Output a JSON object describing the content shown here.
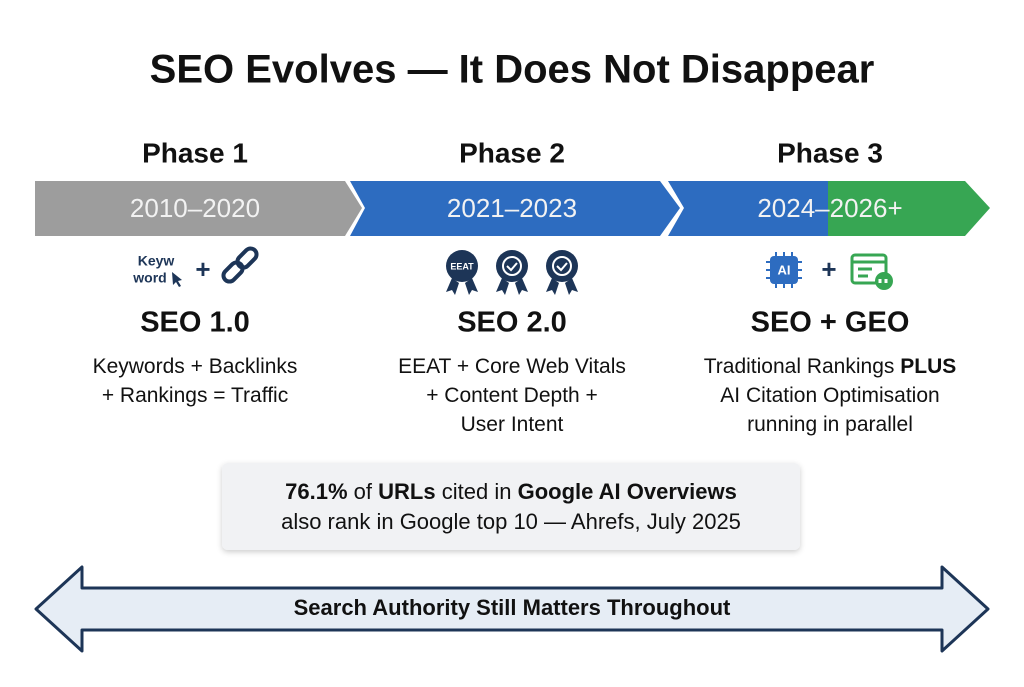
{
  "title": "SEO Evolves — It Does Not Disappear",
  "phases": [
    {
      "label": "Phase 1",
      "years": "2010–2020",
      "icon_text": [
        "Keyw",
        "word"
      ],
      "icon_plus": "+",
      "name": "SEO 1.0",
      "description": [
        [
          {
            "text": "Keywords + Backlinks"
          }
        ],
        [
          {
            "text": "+ Rankings = Traffic"
          }
        ]
      ]
    },
    {
      "label": "Phase 2",
      "years": "2021–2023",
      "icon_text": [
        "EEAT"
      ],
      "name": "SEO 2.0",
      "description": [
        [
          {
            "text": "EEAT + Core Web Vitals"
          }
        ],
        [
          {
            "text": "+ Content Depth +"
          }
        ],
        [
          {
            "text": "User Intent"
          }
        ]
      ]
    },
    {
      "label": "Phase 3",
      "years": "2024–2026+",
      "icon_text": [
        "AI"
      ],
      "icon_plus": "+",
      "name": "SEO + GEO",
      "description": [
        [
          {
            "text": "Traditional Rankings"
          },
          {
            "text": "PLUS",
            "bold": true
          }
        ],
        [
          {
            "text": "AI Citation Optimisation"
          }
        ],
        [
          {
            "text": "running in parallel"
          }
        ]
      ]
    }
  ],
  "callout": {
    "lines": [
      [
        {
          "text": "76.1%",
          "bold": true
        },
        {
          "text": "of"
        },
        {
          "text": "URLs",
          "bold": true
        },
        {
          "text": "cited in"
        },
        {
          "text": "Google AI Overviews",
          "bold": true
        }
      ],
      [
        {
          "text": "also rank in Google top 10 — Ahrefs, July 2025"
        }
      ]
    ]
  },
  "arrow_label": "Search Authority Still Matters Throughout"
}
